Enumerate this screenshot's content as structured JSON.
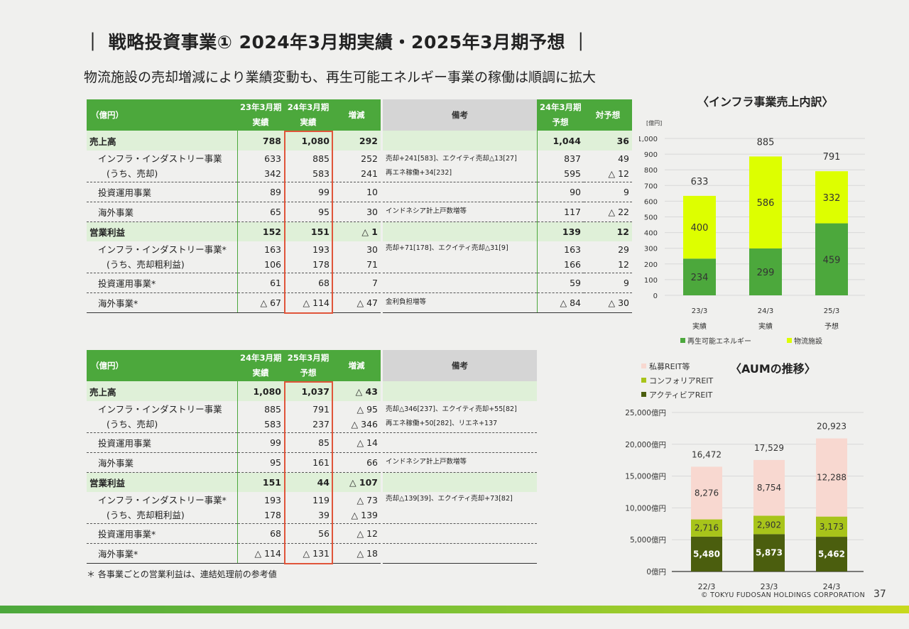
{
  "title": "｜ 戦略投資事業① 2024年3月期実績・2025年3月期予想 ｜",
  "subtitle": "物流施設の売却増減により業績変動も、再生可能エネルギー事業の稼働は順調に拡大",
  "table1": {
    "unit": "（億円）",
    "col1": [
      "23年3月期",
      "実績"
    ],
    "col2": [
      "24年3月期",
      "実績"
    ],
    "col3": "増減",
    "col4": "備考",
    "col5": [
      "24年3月期",
      "予想"
    ],
    "col6": "対予想",
    "rows": {
      "sales": {
        "label": "売上高",
        "v1": "788",
        "v2": "1,080",
        "v3": "292",
        "v5": "1,044",
        "v6": "36"
      },
      "infra": {
        "label1": "インフラ・インダストリー事業",
        "label2": "(うち、売却)",
        "v1a": "633",
        "v1b": "342",
        "v2a": "885",
        "v2b": "583",
        "v3a": "252",
        "v3b": "241",
        "note1": "売却+241[583]、エクイティ売却△13[27]",
        "note2": "再エネ稼働+34[232]",
        "v5a": "837",
        "v5b": "595",
        "v6a": "49",
        "v6b": "△ 12"
      },
      "invest": {
        "label": "投資運用事業",
        "v1": "89",
        "v2": "99",
        "v3": "10",
        "v5": "90",
        "v6": "9"
      },
      "overseas": {
        "label": "海外事業",
        "v1": "65",
        "v2": "95",
        "v3": "30",
        "note": "インドネシア計上戸数増等",
        "v5": "117",
        "v6": "△ 22"
      },
      "op": {
        "label": "営業利益",
        "v1": "152",
        "v2": "151",
        "v3": "△ 1",
        "v5": "139",
        "v6": "12"
      },
      "op_infra": {
        "label1": "インフラ・インダストリー事業*",
        "label2": "(うち、売却粗利益)",
        "v1a": "163",
        "v1b": "106",
        "v2a": "193",
        "v2b": "178",
        "v3a": "30",
        "v3b": "71",
        "note1": "売却+71[178]、エクイティ売却△31[9]",
        "note2": "",
        "v5a": "163",
        "v5b": "166",
        "v6a": "29",
        "v6b": "12"
      },
      "op_invest": {
        "label": "投資運用事業*",
        "v1": "61",
        "v2": "68",
        "v3": "7",
        "v5": "59",
        "v6": "9"
      },
      "op_overseas": {
        "label": "海外事業*",
        "v1": "△ 67",
        "v2": "△ 114",
        "v3": "△ 47",
        "note": "金利負担増等",
        "v5": "△ 84",
        "v6": "△ 30"
      }
    }
  },
  "table2": {
    "unit": "（億円）",
    "col1": [
      "24年3月期",
      "実績"
    ],
    "col2": [
      "25年3月期",
      "予想"
    ],
    "col3": "増減",
    "col4": "備考",
    "rows": {
      "sales": {
        "label": "売上高",
        "v1": "1,080",
        "v2": "1,037",
        "v3": "△ 43"
      },
      "infra": {
        "label1": "インフラ・インダストリー事業",
        "label2": "(うち、売却)",
        "v1a": "885",
        "v1b": "583",
        "v2a": "791",
        "v2b": "237",
        "v3a": "△ 95",
        "v3b": "△ 346",
        "note1": "売却△346[237]、エクイティ売却+55[82]",
        "note2": "再エネ稼働+50[282]、リエネ+137"
      },
      "invest": {
        "label": "投資運用事業",
        "v1": "99",
        "v2": "85",
        "v3": "△ 14"
      },
      "overseas": {
        "label": "海外事業",
        "v1": "95",
        "v2": "161",
        "v3": "66",
        "note": "インドネシア計上戸数増等"
      },
      "op": {
        "label": "営業利益",
        "v1": "151",
        "v2": "44",
        "v3": "△ 107"
      },
      "op_infra": {
        "label1": "インフラ・インダストリー事業*",
        "label2": "(うち、売却粗利益)",
        "v1a": "193",
        "v1b": "178",
        "v2a": "119",
        "v2b": "39",
        "v3a": "△ 73",
        "v3b": "△ 139",
        "note1": "売却△139[39]、エクイティ売却+73[82]",
        "note2": ""
      },
      "op_invest": {
        "label": "投資運用事業*",
        "v1": "68",
        "v2": "56",
        "v3": "△ 12"
      },
      "op_overseas": {
        "label": "海外事業*",
        "v1": "△ 114",
        "v2": "△ 131",
        "v3": "△ 18"
      }
    }
  },
  "footnote": "＊ 各事業ごとの営業利益は、連結処理前の参考値",
  "chart1_title": "〈インフラ事業売上内訳〉",
  "chart2_title": "〈AUMの推移〉",
  "copyright": "© TOKYU FUDOSAN HOLDINGS CORPORATION",
  "page_number": "37",
  "colors": {
    "green": "#4ca83c",
    "lime": "#ddff00",
    "pink": "#f8d8d0",
    "olive": "#a8c41a",
    "dark_olive": "#4b5e0e",
    "red_box": "#e0553a"
  },
  "chart_data": [
    {
      "type": "bar",
      "stacked": true,
      "title": "〈インフラ事業売上内訳〉",
      "ylabel": "[億円]",
      "ylim": [
        0,
        1000
      ],
      "yticks": [
        0,
        100,
        200,
        300,
        400,
        500,
        600,
        700,
        800,
        900,
        1000
      ],
      "categories": [
        [
          "23/3",
          "実績"
        ],
        [
          "24/3",
          "実績"
        ],
        [
          "25/3",
          "予想"
        ]
      ],
      "series": [
        {
          "name": "再生可能エネルギー",
          "color": "#4ca83c",
          "values": [
            234,
            299,
            459
          ]
        },
        {
          "name": "物流施設",
          "color": "#ddff00",
          "values": [
            400,
            586,
            332
          ]
        }
      ],
      "totals": [
        633,
        885,
        791
      ],
      "grid": true,
      "legend": "bottom"
    },
    {
      "type": "bar",
      "stacked": true,
      "title": "〈AUMの推移〉",
      "ylim": [
        0,
        25000
      ],
      "yticks": [
        "0億円",
        "5,000億円",
        "10,000億円",
        "15,000億円",
        "20,000億円",
        "25,000億円"
      ],
      "categories": [
        "22/3",
        "23/3",
        "24/3"
      ],
      "series": [
        {
          "name": "アクティビアREIT",
          "color": "#4b5e0e",
          "values": [
            5480,
            5873,
            5462
          ]
        },
        {
          "name": "コンフォリアREIT",
          "color": "#a8c41a",
          "values": [
            2716,
            2902,
            3173
          ]
        },
        {
          "name": "私募REIT等",
          "color": "#f8d8d0",
          "values": [
            8276,
            8754,
            12288
          ]
        }
      ],
      "totals": [
        16472,
        17529,
        20923
      ],
      "grid": true,
      "legend": "top-left"
    }
  ]
}
